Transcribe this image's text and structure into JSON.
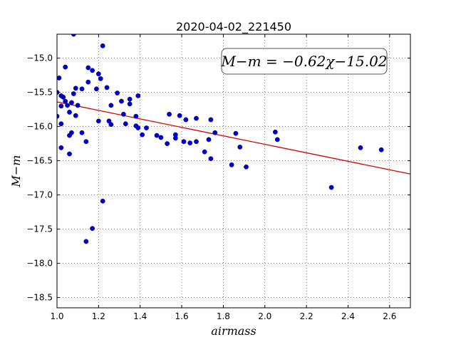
{
  "chart_data": {
    "type": "scatter",
    "title": "2020-04-02_221450",
    "xlabel": "airmass",
    "ylabel": "M−m",
    "xlim": [
      1.0,
      2.7
    ],
    "ylim": [
      -18.65,
      -14.65
    ],
    "y_inverted": true,
    "grid": true,
    "x_ticks": [
      "1.0",
      "1.2",
      "1.4",
      "1.6",
      "1.8",
      "2.0",
      "2.2",
      "2.4",
      "2.6"
    ],
    "x_tick_values": [
      1.0,
      1.2,
      1.4,
      1.6,
      1.8,
      2.0,
      2.2,
      2.4,
      2.6
    ],
    "y_ticks": [
      "−15.0",
      "−15.5",
      "−16.0",
      "−16.5",
      "−17.0",
      "−17.5",
      "−18.0",
      "−18.5"
    ],
    "y_tick_values": [
      -15.0,
      -15.5,
      -16.0,
      -16.5,
      -17.0,
      -17.5,
      -18.0,
      -18.5
    ],
    "annotation": "M−m = −0.62χ−15.02",
    "fit": {
      "slope": -0.62,
      "intercept": -15.02,
      "color": "#d40000"
    },
    "point_color": "#0000c8",
    "points": [
      [
        1.08,
        -14.65
      ],
      [
        1.22,
        -14.82
      ],
      [
        1.04,
        -15.13
      ],
      [
        1.15,
        -15.14
      ],
      [
        1.17,
        -15.18
      ],
      [
        1.2,
        -15.23
      ],
      [
        1.21,
        -15.3
      ],
      [
        1.01,
        -15.29
      ],
      [
        1.15,
        -15.35
      ],
      [
        1.09,
        -15.44
      ],
      [
        1.12,
        -15.45
      ],
      [
        1.19,
        -15.45
      ],
      [
        1.24,
        -15.43
      ],
      [
        1.0,
        -15.5
      ],
      [
        1.02,
        -15.55
      ],
      [
        1.03,
        -15.57
      ],
      [
        1.08,
        -15.52
      ],
      [
        1.29,
        -15.51
      ],
      [
        1.39,
        -15.55
      ],
      [
        1.35,
        -15.6
      ],
      [
        1.04,
        -15.63
      ],
      [
        1.07,
        -15.65
      ],
      [
        1.31,
        -15.63
      ],
      [
        1.35,
        -15.67
      ],
      [
        1.05,
        -15.69
      ],
      [
        1.1,
        -15.69
      ],
      [
        1.02,
        -15.7
      ],
      [
        1.26,
        -15.69
      ],
      [
        1.06,
        -15.79
      ],
      [
        1.32,
        -15.82
      ],
      [
        1.09,
        -15.84
      ],
      [
        1.0,
        -15.85
      ],
      [
        1.54,
        -15.82
      ],
      [
        1.59,
        -15.84
      ],
      [
        1.38,
        -15.85
      ],
      [
        1.67,
        -15.88
      ],
      [
        1.62,
        -15.9
      ],
      [
        1.74,
        -15.9
      ],
      [
        1.2,
        -15.92
      ],
      [
        1.25,
        -15.92
      ],
      [
        1.02,
        -15.96
      ],
      [
        1.26,
        -15.97
      ],
      [
        1.33,
        -15.96
      ],
      [
        1.38,
        -15.99
      ],
      [
        1.39,
        -16.02
      ],
      [
        1.43,
        -16.02
      ],
      [
        1.07,
        -16.09
      ],
      [
        1.12,
        -16.09
      ],
      [
        1.06,
        -16.13
      ],
      [
        1.41,
        -16.12
      ],
      [
        1.48,
        -16.13
      ],
      [
        1.5,
        -16.16
      ],
      [
        1.57,
        -16.12
      ],
      [
        1.76,
        -16.09
      ],
      [
        1.86,
        -16.1
      ],
      [
        2.05,
        -16.08
      ],
      [
        1.57,
        -16.17
      ],
      [
        1.73,
        -16.19
      ],
      [
        2.06,
        -16.19
      ],
      [
        1.14,
        -16.22
      ],
      [
        1.53,
        -16.25
      ],
      [
        1.61,
        -16.22
      ],
      [
        1.64,
        -16.24
      ],
      [
        1.67,
        -16.22
      ],
      [
        1.02,
        -16.31
      ],
      [
        1.88,
        -16.3
      ],
      [
        2.46,
        -16.31
      ],
      [
        2.56,
        -16.34
      ],
      [
        1.71,
        -16.37
      ],
      [
        1.06,
        -16.4
      ],
      [
        1.74,
        -16.47
      ],
      [
        1.84,
        -16.56
      ],
      [
        1.91,
        -16.59
      ],
      [
        2.32,
        -16.89
      ],
      [
        1.22,
        -17.09
      ],
      [
        1.17,
        -17.49
      ],
      [
        1.14,
        -17.68
      ]
    ]
  }
}
